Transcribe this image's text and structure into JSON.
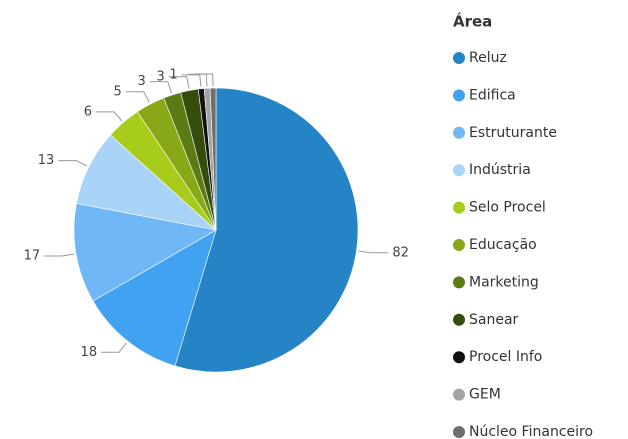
{
  "chart_data": {
    "type": "pie",
    "legend_title": "Área",
    "categories": [
      "Reluz",
      "Edifica",
      "Estruturante",
      "Indústria",
      "Selo Procel",
      "Educação",
      "Marketing",
      "Sanear",
      "Procel Info",
      "GEM",
      "Núcleo Financeiro"
    ],
    "values": [
      82,
      18,
      17,
      13,
      6,
      5,
      3,
      3,
      1,
      1,
      1
    ],
    "value_labels": [
      "82",
      "18",
      "17",
      "13",
      "6",
      "5",
      "3",
      "3",
      "1",
      null,
      null
    ],
    "colors": [
      "#2584c6",
      "#42a2f2",
      "#70b8f5",
      "#a9d4f8",
      "#a7cc1c",
      "#88a817",
      "#5b7b14",
      "#344c0c",
      "#111111",
      "#a3a3a3",
      "#6e6e6e"
    ],
    "legend": "right"
  }
}
